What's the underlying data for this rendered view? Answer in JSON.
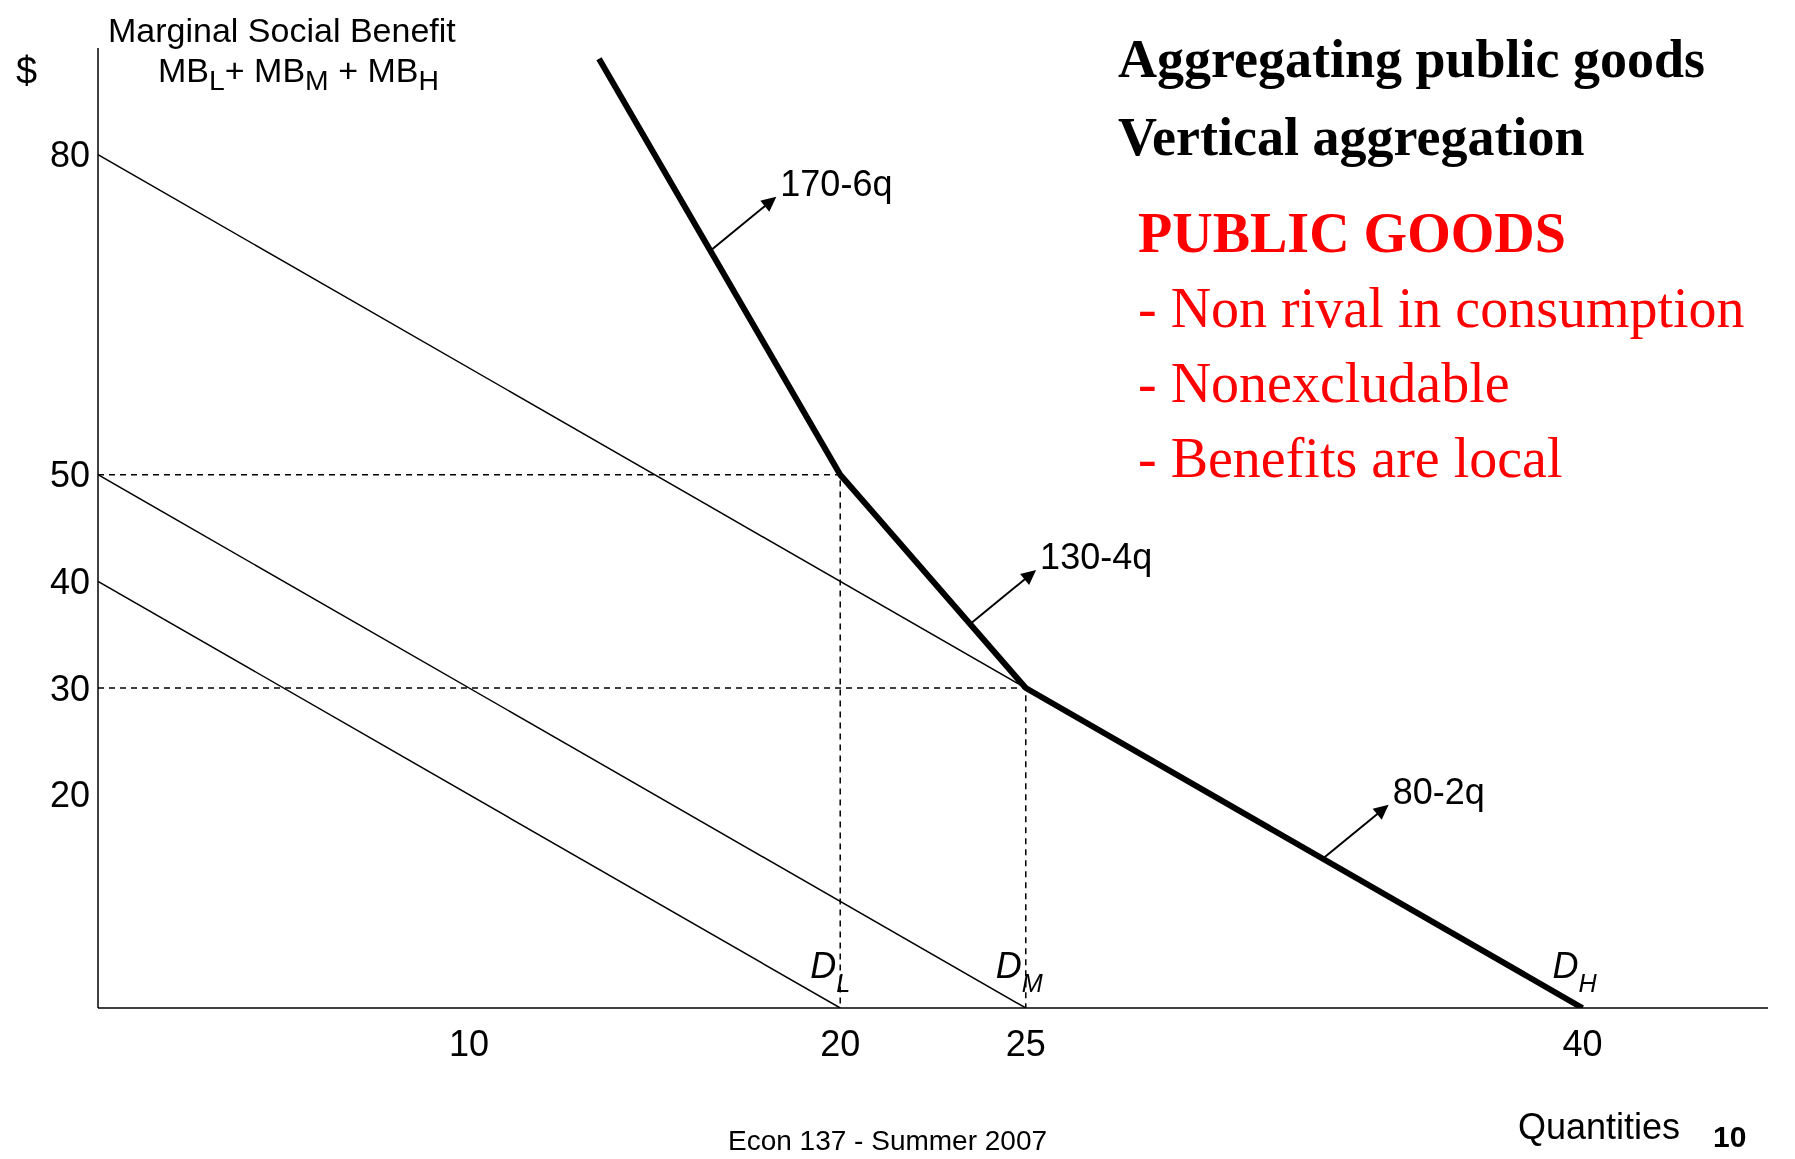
{
  "chart_data": {
    "type": "line",
    "title": "Aggregating public goods",
    "subtitle": "Vertical aggregation",
    "xlabel": "Quantities",
    "ylabel": "$",
    "xlim": [
      0,
      45
    ],
    "ylim": [
      0,
      90
    ],
    "xticks": [
      10,
      20,
      25,
      40
    ],
    "yticks": [
      20,
      30,
      40,
      50,
      80
    ],
    "grid": false,
    "legend": false,
    "marker": "none",
    "series": [
      {
        "color": "#000000",
        "x": [
          13.5,
          20,
          25,
          40
        ],
        "values": [
          89,
          50,
          30,
          0
        ]
      },
      {
        "name": "D$_{L}$",
        "color": "#000000",
        "x": [
          0,
          20
        ],
        "values": [
          40,
          0
        ]
      },
      {
        "name": "D$_{M}$",
        "color": "#000000",
        "x": [
          0,
          25
        ],
        "values": [
          50,
          0
        ]
      },
      {
        "name": "D$_{H}$",
        "color": "#000000",
        "x": [
          0,
          40
        ],
        "values": [
          80,
          0
        ]
      },
      {
        "color": "#000000",
        "line_style": "dashed",
        "x": [
          0,
          20,
          20
        ],
        "values": [
          50,
          50,
          0
        ]
      },
      {
        "color": "#000000",
        "line_style": "dashed",
        "x": [
          0,
          25,
          25
        ],
        "values": [
          30,
          30,
          0
        ]
      }
    ],
    "annotations": [
      "Marginal Social Benefit",
      "MB$_{L}$+ MB$_{M}$ + MB$_{H}$",
      "PUBLIC GOODS",
      "- Non rival in consumption",
      "- Nonexcludable",
      "- Benefits are local",
      "Econ 137 - Summer 2007",
      "10",
      {
        "text": "170-6q",
        "x": 16.5,
        "y": 71
      },
      {
        "text": "130-4q",
        "x": 23.5,
        "y": 36
      },
      {
        "text": "80-2q",
        "x": 33,
        "y": 14
      }
    ]
  }
}
